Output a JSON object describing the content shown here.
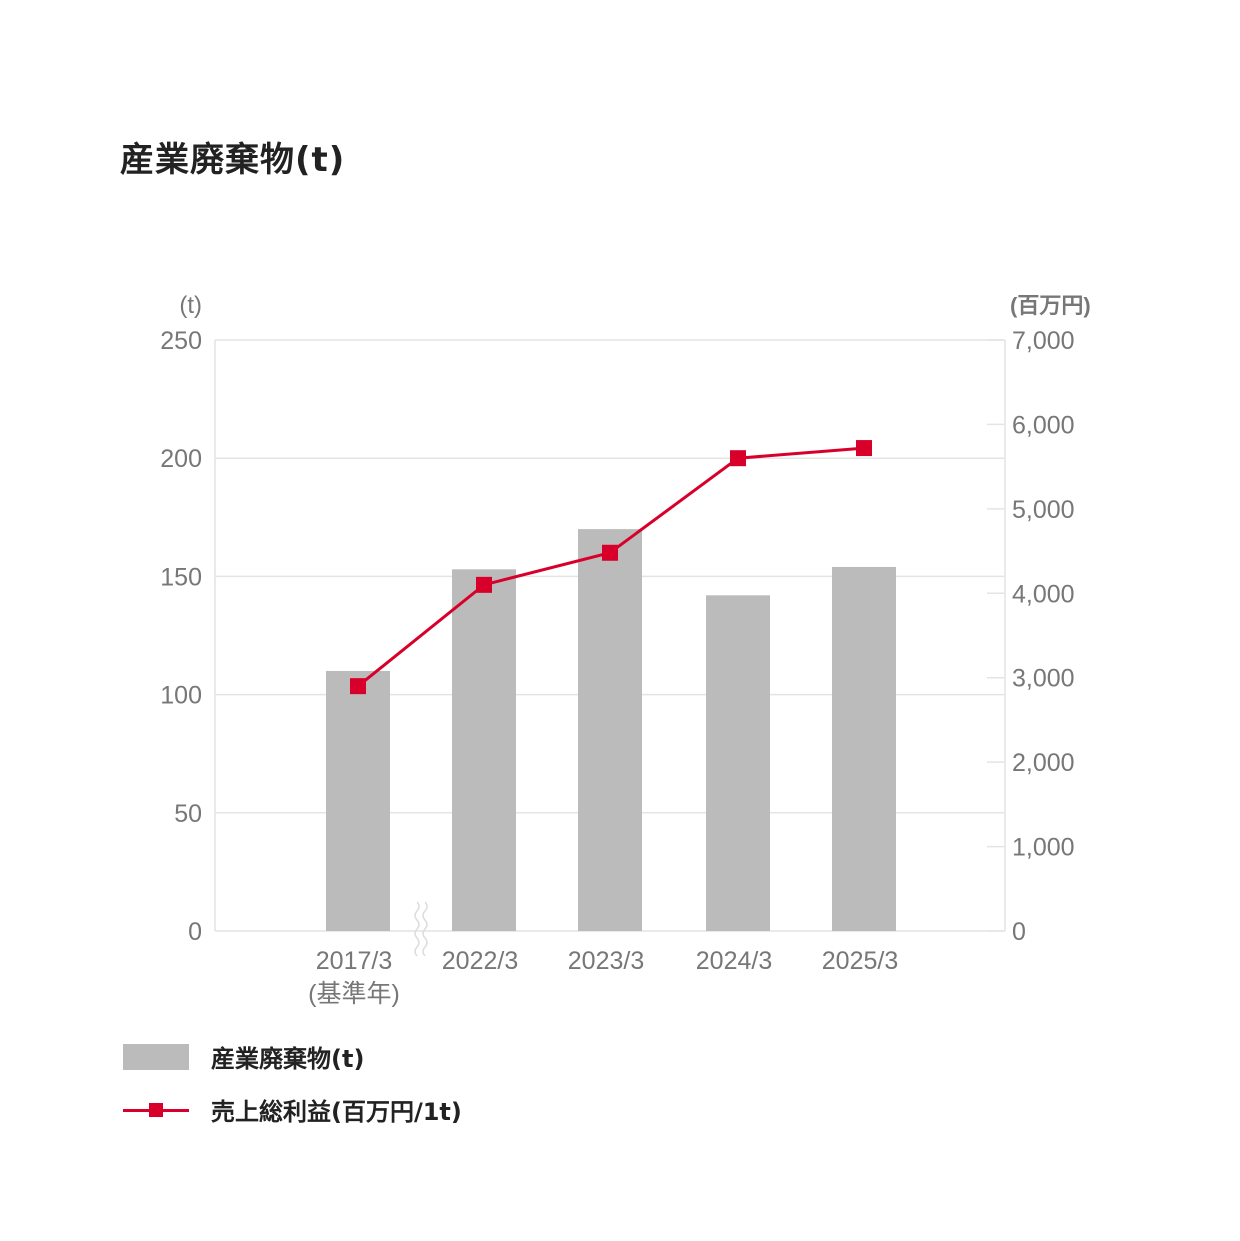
{
  "title": "産業廃棄物(t)",
  "chart_data": {
    "type": "bar",
    "categories": [
      "2017/3",
      "2022/3",
      "2023/3",
      "2024/3",
      "2025/3"
    ],
    "category_sublabels": [
      "(基準年)",
      "",
      "",
      "",
      ""
    ],
    "left_axis": {
      "unit_label": "(t)",
      "ylim": [
        0,
        250
      ],
      "ticks": [
        0,
        50,
        100,
        150,
        200,
        250
      ]
    },
    "right_axis": {
      "unit_label": "(百万円)",
      "ylim": [
        0,
        7000
      ],
      "ticks": [
        0,
        1000,
        2000,
        3000,
        4000,
        5000,
        6000,
        7000
      ],
      "tick_labels": [
        "0",
        "1,000",
        "2,000",
        "3,000",
        "4,000",
        "5,000",
        "6,000",
        "7,000"
      ]
    },
    "series": [
      {
        "name": "産業廃棄物(t)",
        "type": "bar",
        "axis": "left",
        "color": "#bbbbbb",
        "values": [
          110,
          153,
          170,
          142,
          154
        ]
      },
      {
        "name": "売上総利益(百万円/1t)",
        "type": "line",
        "axis": "right",
        "color": "#d8002a",
        "values": [
          2900,
          4100,
          4480,
          5600,
          5720
        ]
      }
    ],
    "axis_break_between": [
      "2017/3",
      "2022/3"
    ],
    "grid": true,
    "legend_position": "bottom-left"
  }
}
